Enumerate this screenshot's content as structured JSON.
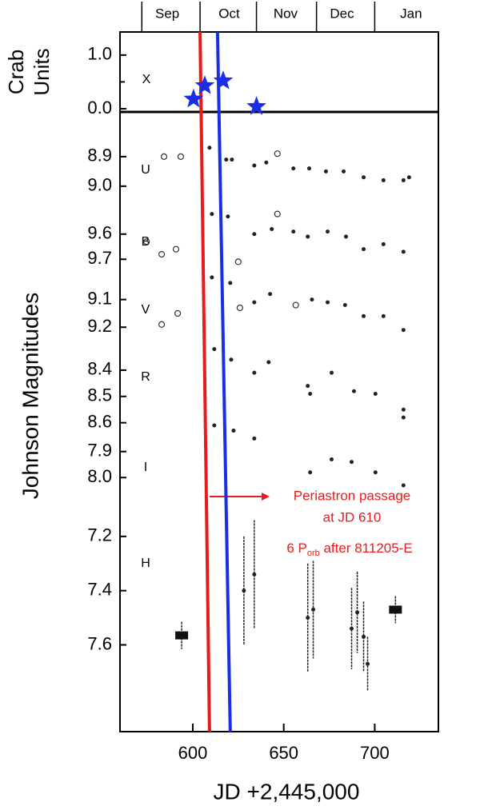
{
  "chart_data": {
    "type": "scatter",
    "x_label": "JD +2,445,000",
    "xlim": [
      560,
      735
    ],
    "xticks": [
      600,
      650,
      700
    ],
    "month_labels": [
      {
        "value": 586,
        "label": "Sep"
      },
      {
        "value": 620,
        "label": "Oct"
      },
      {
        "value": 651,
        "label": "Nov"
      },
      {
        "value": 682,
        "label": "Dec"
      },
      {
        "value": 720,
        "label": "Jan"
      }
    ],
    "month_ticks": [
      572,
      604,
      635,
      668,
      700
    ],
    "crab": {
      "y_label": [
        "Crab",
        "Units"
      ],
      "label": "X",
      "ylim": [
        -0.06,
        1.43
      ],
      "yticks": [
        {
          "value": 0,
          "label": "0.0"
        },
        {
          "value": 1,
          "label": "1.0"
        }
      ],
      "minor_yticks": [
        0.5
      ],
      "color": "#1a2ee6",
      "x": [
        600.4,
        606.6,
        616.7,
        635
      ],
      "y": [
        0.18,
        0.43,
        0.52,
        0.04
      ]
    },
    "y_label": "Johnson Magnitudes",
    "bands": [
      {
        "label": "U",
        "ylim": [
          8.83,
          9.06
        ],
        "yticks": [
          8.9,
          {
            "value": 9,
            "label": "9.0"
          }
        ],
        "series": [
          {
            "marker": "circle",
            "x": [
              584.2,
              593.4,
              646.5
            ],
            "y": [
              8.9,
              8.9,
              8.89
            ]
          },
          {
            "marker": "dot",
            "x": [
              609.2,
              618.4,
              621.5,
              633.8,
              640.4,
              655.3,
              664,
              673.2,
              682.9,
              693.9,
              704.8,
              715.8,
              718.9
            ],
            "y": [
              8.87,
              8.91,
              8.91,
              8.93,
              8.92,
              8.94,
              8.94,
              8.95,
              8.95,
              8.97,
              8.98,
              8.98,
              8.97
            ]
          }
        ]
      },
      {
        "label": "B",
        "ylim": [
          9.48,
          9.75
        ],
        "yticks": [
          9.6,
          9.7
        ],
        "series": [
          {
            "marker": "circle",
            "x": [
              574.6,
              582.9,
              590.8,
              625,
              646.5
            ],
            "y": [
              9.63,
              9.68,
              9.66,
              9.71,
              9.52
            ]
          },
          {
            "marker": "dot",
            "x": [
              610.5,
              619.3,
              633.8,
              643.4,
              655.3,
              663.2,
              674.1,
              684.2,
              693.9,
              704.8,
              715.8
            ],
            "y": [
              9.52,
              9.53,
              9.6,
              9.58,
              9.59,
              9.61,
              9.59,
              9.61,
              9.66,
              9.64,
              9.67
            ]
          }
        ]
      },
      {
        "label": "V",
        "ylim": [
          9.0,
          9.26
        ],
        "yticks": [
          9.1,
          9.2
        ],
        "series": [
          {
            "marker": "circle",
            "x": [
              582.9,
              591.7,
              625.9,
              656.6
            ],
            "y": [
              9.19,
              9.15,
              9.13,
              9.12
            ]
          },
          {
            "marker": "dot",
            "x": [
              610.5,
              620.6,
              633.8,
              642.5,
              665.5,
              674.1,
              683.7,
              693.9,
              704.8,
              715.8
            ],
            "y": [
              9.02,
              9.04,
              9.11,
              9.08,
              9.1,
              9.11,
              9.12,
              9.16,
              9.16,
              9.21
            ]
          }
        ]
      },
      {
        "label": "R",
        "ylim": [
          8.3,
          8.68
        ],
        "yticks": [
          8.4,
          8.5,
          8.6
        ],
        "series": [
          {
            "marker": "dot",
            "x": [
              611.8,
              621.1,
              633.8,
              641.7,
              663.2,
              664.5,
              676.3,
              688.6,
              700.4,
              715.8,
              715.8,
              611.8,
              622.4,
              633.8
            ],
            "y": [
              8.32,
              8.36,
              8.41,
              8.37,
              8.46,
              8.49,
              8.41,
              8.48,
              8.49,
              8.55,
              8.58,
              8.61,
              8.63,
              8.66
            ]
          }
        ]
      },
      {
        "label": "I",
        "ylim": [
          7.87,
          8.07
        ],
        "yticks": [
          7.9,
          {
            "value": 8,
            "label": "8.0"
          }
        ],
        "series": [
          {
            "marker": "dot",
            "x": [
              664.5,
              676.3,
              687.3,
              700.4,
              715.8
            ],
            "y": [
              7.98,
              7.93,
              7.94,
              7.98,
              8.03
            ]
          }
        ]
      },
      {
        "label": "H",
        "ylim": [
          7.05,
          7.92
        ],
        "yticks": [
          7.2,
          7.4,
          7.6
        ],
        "series": [
          {
            "marker": "square",
            "x": [
              593.9,
              711.4
            ],
            "y": [
              7.565,
              7.47
            ],
            "errors": [
              0.05,
              0.05
            ]
          },
          {
            "marker": "dot",
            "x": [
              628.1,
              633.8,
              663.2,
              666.2,
              687.3,
              690.4,
              693.9,
              696.1
            ],
            "y": [
              7.4,
              7.34,
              7.5,
              7.47,
              7.54,
              7.48,
              7.57,
              7.67
            ],
            "errors": [
              0.2,
              0.2,
              0.2,
              0.18,
              0.15,
              0.15,
              0.13,
              0.1
            ]
          }
        ]
      }
    ],
    "lines": [
      {
        "color": "#e61c1c",
        "x": [
          604,
          609.2
        ]
      },
      {
        "color": "#1a2ee6",
        "x": [
          613.6,
          620.6
        ]
      }
    ],
    "annotation": {
      "color": "#e61c1c",
      "lines": [
        "Periastron passage",
        "at JD 610"
      ],
      "porb": [
        "6 P",
        "orb",
        " after 811205-E"
      ]
    }
  }
}
